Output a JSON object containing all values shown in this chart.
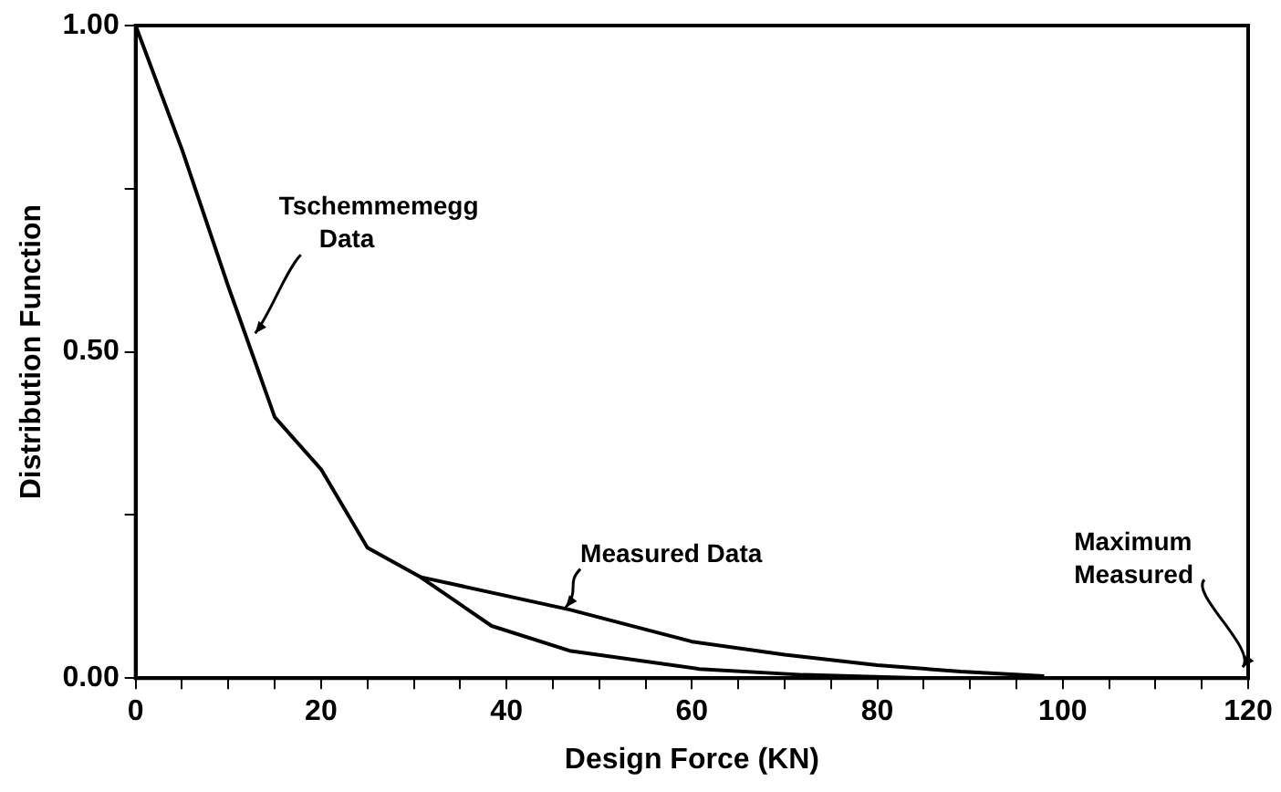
{
  "chart_data": {
    "type": "line",
    "xlabel": "Design Force (KN)",
    "ylabel": "Distribution Function",
    "series": [
      {
        "color": "#000000",
        "x": [
          0,
          5,
          10,
          15,
          20,
          25,
          30.7,
          38.4,
          46.8,
          60.8,
          72,
          85,
          100
        ],
        "values": [
          1.0,
          0.81,
          0.6,
          0.4,
          0.32,
          0.2,
          0.155,
          0.08,
          0.042,
          0.014,
          0.005,
          0.0,
          0.0
        ]
      },
      {
        "color": "#000000",
        "x": [
          30.7,
          46.8,
          60,
          70,
          80,
          89,
          98
        ],
        "values": [
          0.155,
          0.105,
          0.056,
          0.036,
          0.02,
          0.01,
          0.003
        ]
      }
    ],
    "xlim": [
      0,
      120
    ],
    "ylim": [
      0,
      1
    ],
    "xticks": [
      0,
      {
        "value": 5,
        "label": null
      },
      {
        "value": 10,
        "label": null
      },
      {
        "value": 15,
        "label": null
      },
      20,
      {
        "value": 25,
        "label": null
      },
      {
        "value": 30,
        "label": null
      },
      {
        "value": 35,
        "label": null
      },
      40,
      {
        "value": 45,
        "label": null
      },
      {
        "value": 50,
        "label": null
      },
      {
        "value": 55,
        "label": null
      },
      60,
      {
        "value": 65,
        "label": null
      },
      {
        "value": 70,
        "label": null
      },
      {
        "value": 75,
        "label": null
      },
      80,
      {
        "value": 85,
        "label": null
      },
      {
        "value": 90,
        "label": null
      },
      {
        "value": 95,
        "label": null
      },
      100,
      {
        "value": 105,
        "label": null
      },
      {
        "value": 110,
        "label": null
      },
      {
        "value": 115,
        "label": null
      },
      120
    ],
    "yticks": [
      {
        "value": 0,
        "label": "0.00"
      },
      {
        "value": 0.25,
        "label": null
      },
      {
        "value": 0.5,
        "label": "0.50"
      },
      {
        "value": 0.75,
        "label": null
      },
      {
        "value": 1,
        "label": "1.00"
      }
    ],
    "annotations": [
      {
        "text": "Tschemmemegg\nData",
        "x": 12.5,
        "y": 0.52
      },
      {
        "text": "Measured Data",
        "x": 46,
        "y": 0.1
      },
      "Maximum\nMeasured"
    ],
    "grid": false,
    "legend": false,
    "marker": "none",
    "line_style": "solid"
  }
}
